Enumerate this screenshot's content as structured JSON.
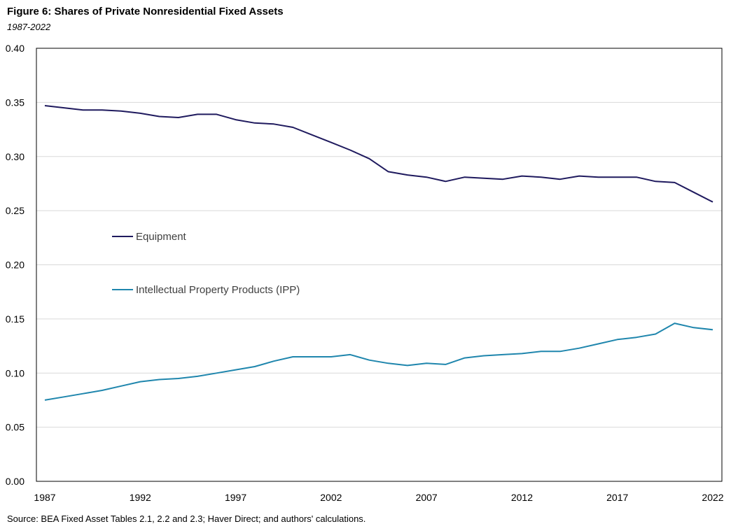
{
  "chart_data": {
    "type": "line",
    "title": "Figure 6: Shares of Private Nonresidential Fixed Assets",
    "subtitle": "1987-2022",
    "source": "Source: BEA Fixed Asset Tables 2.1, 2.2 and 2.3; Haver Direct; and authors' calculations.",
    "xlabel": "",
    "ylabel": "",
    "ylim": [
      0,
      0.4
    ],
    "yticks": [
      "0.00",
      "0.05",
      "0.10",
      "0.15",
      "0.20",
      "0.25",
      "0.30",
      "0.35",
      "0.40"
    ],
    "xticks": [
      "1987",
      "1992",
      "1997",
      "2002",
      "2007",
      "2012",
      "2017",
      "2022"
    ],
    "x": [
      1987,
      1988,
      1989,
      1990,
      1991,
      1992,
      1993,
      1994,
      1995,
      1996,
      1997,
      1998,
      1999,
      2000,
      2001,
      2002,
      2003,
      2004,
      2005,
      2006,
      2007,
      2008,
      2009,
      2010,
      2011,
      2012,
      2013,
      2014,
      2015,
      2016,
      2017,
      2018,
      2019,
      2020,
      2021,
      2022
    ],
    "grid": true,
    "legend_position": "inside-left",
    "series": [
      {
        "name": "Equipment",
        "color": "#1f1a5e",
        "values": [
          0.347,
          0.345,
          0.343,
          0.343,
          0.342,
          0.34,
          0.337,
          0.336,
          0.339,
          0.339,
          0.334,
          0.331,
          0.33,
          0.327,
          0.32,
          0.313,
          0.306,
          0.298,
          0.286,
          0.283,
          0.281,
          0.277,
          0.281,
          0.28,
          0.279,
          0.282,
          0.281,
          0.279,
          0.282,
          0.281,
          0.281,
          0.281,
          0.277,
          0.276,
          0.267,
          0.258
        ]
      },
      {
        "name": "Intellectual Property Products (IPP)",
        "color": "#1f86ad",
        "values": [
          0.075,
          0.078,
          0.081,
          0.084,
          0.088,
          0.092,
          0.094,
          0.095,
          0.097,
          0.1,
          0.103,
          0.106,
          0.111,
          0.115,
          0.115,
          0.115,
          0.117,
          0.112,
          0.109,
          0.107,
          0.109,
          0.108,
          0.114,
          0.116,
          0.117,
          0.118,
          0.12,
          0.12,
          0.123,
          0.127,
          0.131,
          0.133,
          0.136,
          0.146,
          0.142,
          0.14
        ]
      }
    ]
  }
}
